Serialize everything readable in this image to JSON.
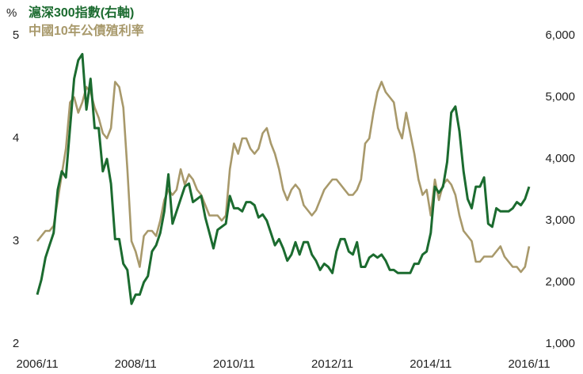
{
  "chart_data": {
    "type": "line",
    "ylabel": "%",
    "x": [
      "2006/11",
      "2006/12",
      "2007/01",
      "2007/02",
      "2007/03",
      "2007/04",
      "2007/05",
      "2007/06",
      "2007/07",
      "2007/08",
      "2007/09",
      "2007/10",
      "2007/11",
      "2007/12",
      "2008/01",
      "2008/02",
      "2008/03",
      "2008/04",
      "2008/05",
      "2008/06",
      "2008/07",
      "2008/08",
      "2008/09",
      "2008/10",
      "2008/11",
      "2008/12",
      "2009/01",
      "2009/02",
      "2009/03",
      "2009/04",
      "2009/05",
      "2009/06",
      "2009/07",
      "2009/08",
      "2009/09",
      "2009/10",
      "2009/11",
      "2009/12",
      "2010/01",
      "2010/02",
      "2010/03",
      "2010/04",
      "2010/05",
      "2010/06",
      "2010/07",
      "2010/08",
      "2010/09",
      "2010/10",
      "2010/11",
      "2010/12",
      "2011/01",
      "2011/02",
      "2011/03",
      "2011/04",
      "2011/05",
      "2011/06",
      "2011/07",
      "2011/08",
      "2011/09",
      "2011/10",
      "2011/11",
      "2011/12",
      "2012/01",
      "2012/02",
      "2012/03",
      "2012/04",
      "2012/05",
      "2012/06",
      "2012/07",
      "2012/08",
      "2012/09",
      "2012/10",
      "2012/11",
      "2012/12",
      "2013/01",
      "2013/02",
      "2013/03",
      "2013/04",
      "2013/05",
      "2013/06",
      "2013/07",
      "2013/08",
      "2013/09",
      "2013/10",
      "2013/11",
      "2013/12",
      "2014/01",
      "2014/02",
      "2014/03",
      "2014/04",
      "2014/05",
      "2014/06",
      "2014/07",
      "2014/08",
      "2014/09",
      "2014/10",
      "2014/11",
      "2014/12",
      "2015/01",
      "2015/02",
      "2015/03",
      "2015/04",
      "2015/05",
      "2015/06",
      "2015/07",
      "2015/08",
      "2015/09",
      "2015/10",
      "2015/11",
      "2015/12",
      "2016/01",
      "2016/02",
      "2016/03",
      "2016/04",
      "2016/05",
      "2016/06",
      "2016/07",
      "2016/08",
      "2016/09",
      "2016/10",
      "2016/11"
    ],
    "xticks": [
      "2006/11",
      "2008/11",
      "2010/11",
      "2012/11",
      "2014/11",
      "2016/11"
    ],
    "ylim": [
      2,
      5
    ],
    "yticks": [
      2,
      3,
      4,
      5
    ],
    "y2lim": [
      1000,
      6000
    ],
    "y2ticks": [
      {
        "value": 1000,
        "label": "1,000"
      },
      {
        "value": 2000,
        "label": "2,000"
      },
      {
        "value": 3000,
        "label": "3,000"
      },
      {
        "value": 4000,
        "label": "4,000"
      },
      {
        "value": 5000,
        "label": "5,000"
      },
      {
        "value": 6000,
        "label": "6,000"
      }
    ],
    "series": [
      {
        "name": "滬深300指數(右軸)",
        "color": "#1b6b2f",
        "axis": "y2",
        "values": [
          1800,
          2041,
          2400,
          2600,
          2800,
          3500,
          3800,
          3700,
          4500,
          5300,
          5600,
          5700,
          4800,
          5300,
          4500,
          4500,
          3800,
          4000,
          3600,
          2700,
          2700,
          2300,
          2200,
          1650,
          1800,
          1800,
          2000,
          2100,
          2500,
          2600,
          2800,
          3150,
          3750,
          2950,
          3150,
          3350,
          3550,
          3600,
          3300,
          3350,
          3400,
          3050,
          2800,
          2550,
          2850,
          2900,
          2950,
          3400,
          3200,
          3200,
          3150,
          3300,
          3300,
          3250,
          3050,
          3100,
          3000,
          2800,
          2600,
          2700,
          2550,
          2350,
          2450,
          2650,
          2450,
          2650,
          2650,
          2450,
          2350,
          2200,
          2300,
          2250,
          2150,
          2500,
          2700,
          2700,
          2500,
          2450,
          2650,
          2250,
          2250,
          2400,
          2450,
          2400,
          2450,
          2350,
          2200,
          2200,
          2150,
          2150,
          2150,
          2150,
          2300,
          2300,
          2450,
          2500,
          2800,
          3550,
          3450,
          3550,
          3950,
          4750,
          4850,
          4450,
          3800,
          3350,
          3200,
          3550,
          3550,
          3700,
          2950,
          2900,
          3200,
          3150,
          3150,
          3150,
          3200,
          3300,
          3250,
          3350,
          3550
        ]
      },
      {
        "name": "中國10年公債殖利率",
        "color": "#a8996b",
        "values": [
          3.0,
          3.05,
          3.1,
          3.1,
          3.15,
          3.4,
          3.65,
          3.9,
          4.35,
          4.4,
          4.25,
          4.35,
          4.5,
          4.45,
          4.3,
          4.2,
          4.05,
          4.0,
          4.1,
          4.55,
          4.5,
          4.3,
          3.7,
          3.0,
          2.9,
          2.75,
          3.05,
          3.1,
          3.1,
          3.05,
          3.2,
          3.4,
          3.5,
          3.45,
          3.5,
          3.7,
          3.55,
          3.65,
          3.6,
          3.5,
          3.45,
          3.35,
          3.25,
          3.25,
          3.25,
          3.2,
          3.25,
          3.7,
          3.95,
          3.85,
          4.0,
          4.0,
          3.9,
          3.85,
          3.9,
          4.05,
          4.1,
          3.95,
          3.85,
          3.7,
          3.5,
          3.4,
          3.5,
          3.55,
          3.5,
          3.35,
          3.3,
          3.25,
          3.3,
          3.4,
          3.5,
          3.55,
          3.6,
          3.6,
          3.55,
          3.5,
          3.45,
          3.45,
          3.5,
          3.6,
          3.95,
          4.0,
          4.25,
          4.45,
          4.55,
          4.45,
          4.4,
          4.35,
          4.1,
          4.0,
          4.25,
          4.05,
          3.85,
          3.6,
          3.45,
          3.5,
          3.25,
          3.6,
          3.4,
          3.55,
          3.6,
          3.55,
          3.45,
          3.25,
          3.1,
          3.05,
          3.0,
          2.8,
          2.8,
          2.85,
          2.85,
          2.85,
          2.9,
          2.95,
          2.85,
          2.8,
          2.75,
          2.75,
          2.7,
          2.75,
          2.95
        ]
      }
    ]
  }
}
